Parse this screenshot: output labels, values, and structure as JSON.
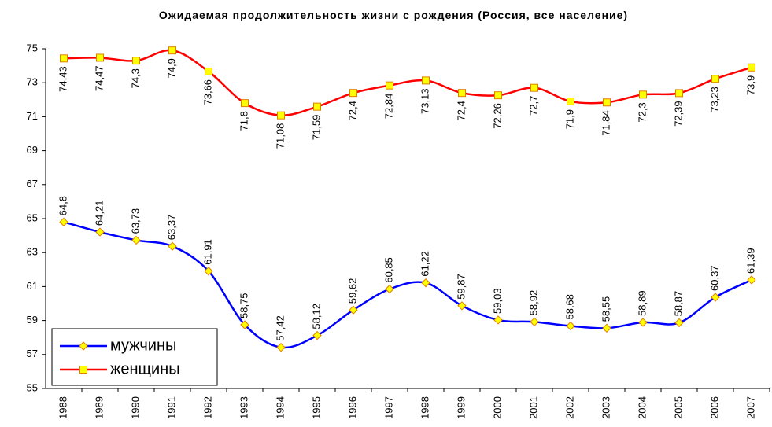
{
  "chart_data": {
    "type": "line",
    "title": "Ожидаемая продолжительность жизни с рождения (Россия, все население)",
    "categories": [
      "1988",
      "1989",
      "1990",
      "1991",
      "1992",
      "1993",
      "1994",
      "1995",
      "1996",
      "1997",
      "1998",
      "1999",
      "2000",
      "2001",
      "2002",
      "2003",
      "2004",
      "2005",
      "2006",
      "2007"
    ],
    "series": [
      {
        "name": "мужчины",
        "color": "#0000ff",
        "marker": "diamond",
        "values": [
          64.8,
          64.21,
          63.73,
          63.37,
          61.91,
          58.75,
          57.42,
          58.12,
          59.62,
          60.85,
          61.22,
          59.87,
          59.03,
          58.92,
          58.68,
          58.55,
          58.89,
          58.87,
          60.37,
          61.39
        ],
        "value_labels": [
          "64,8",
          "64,21",
          "63,73",
          "63,37",
          "61,91",
          "58,75",
          "57,42",
          "58,12",
          "59,62",
          "60,85",
          "61,22",
          "59,87",
          "59,03",
          "58,92",
          "58,68",
          "58,55",
          "58,89",
          "58,87",
          "60,37",
          "61,39"
        ]
      },
      {
        "name": "женщины",
        "color": "#ff0000",
        "marker": "square",
        "values": [
          74.43,
          74.47,
          74.3,
          74.9,
          73.66,
          71.8,
          71.08,
          71.59,
          72.4,
          72.84,
          73.13,
          72.4,
          72.26,
          72.7,
          71.9,
          71.84,
          72.3,
          72.39,
          73.23,
          73.9
        ],
        "value_labels": [
          "74,43",
          "74,47",
          "74,3",
          "74,9",
          "73,66",
          "71,8",
          "71,08",
          "71,59",
          "72,4",
          "72,84",
          "73,13",
          "72,4",
          "72,26",
          "72,7",
          "71,9",
          "71,84",
          "72,3",
          "72,39",
          "73,23",
          "73,9"
        ]
      }
    ],
    "ylim": [
      55,
      75
    ],
    "yticks": [
      55,
      57,
      59,
      61,
      63,
      65,
      67,
      69,
      71,
      73,
      75
    ],
    "grid": false,
    "legend": "lower left"
  }
}
